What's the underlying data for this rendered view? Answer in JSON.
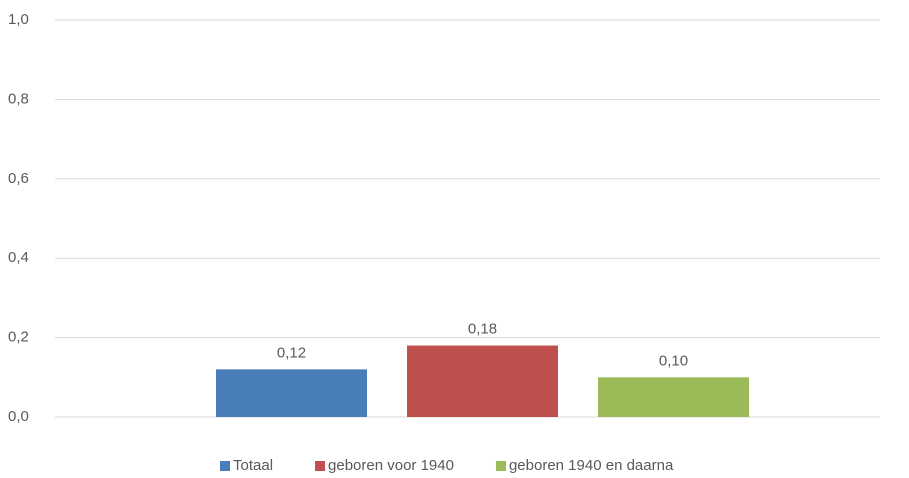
{
  "chart_data": {
    "type": "bar",
    "categories": [
      null
    ],
    "series": [
      {
        "name": "Totaal",
        "color": "#4a7ebb",
        "values": [
          0.12
        ],
        "value_labels": [
          "0,12"
        ]
      },
      {
        "name": "geboren voor 1940",
        "color": "#c0504d",
        "values": [
          0.18
        ],
        "value_labels": [
          "0,18"
        ]
      },
      {
        "name": "geboren 1940 en daarna",
        "color": "#9bbb59",
        "values": [
          0.1
        ],
        "value_labels": [
          "0,10"
        ]
      }
    ],
    "ylim": [
      0,
      1
    ],
    "yticks": [
      {
        "value": 0,
        "label": "0,0"
      },
      {
        "value": 0.2,
        "label": "0,2"
      },
      {
        "value": 0.4,
        "label": "0,4"
      },
      {
        "value": 0.6,
        "label": "0,6"
      },
      {
        "value": 0.8,
        "label": "0,8"
      },
      {
        "value": 1,
        "label": "1,0"
      }
    ],
    "grid": true,
    "legend": "bottom"
  }
}
